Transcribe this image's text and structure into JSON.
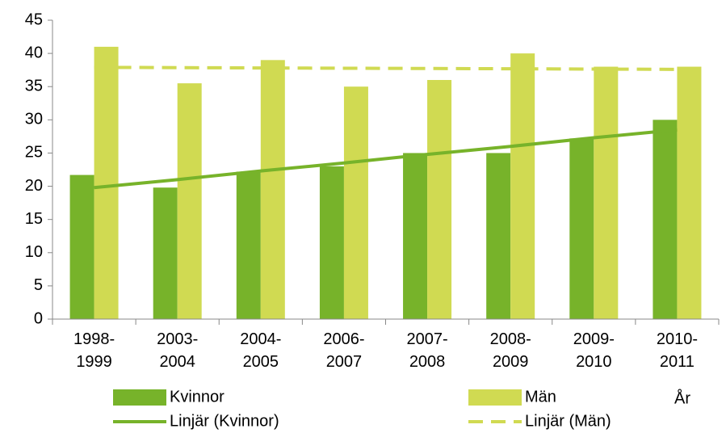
{
  "chart_data": {
    "type": "bar",
    "x_label": "År",
    "categories": [
      "1998-1999",
      "2003-2004",
      "2004-2005",
      "2006-2007",
      "2007-2008",
      "2008-2009",
      "2009-2010",
      "2010-2011"
    ],
    "series": [
      {
        "name": "Kvinnor",
        "color": "#77b32a",
        "kind": "bar",
        "values": [
          21.7,
          19.8,
          22.2,
          23,
          25,
          25,
          27.2,
          30
        ]
      },
      {
        "name": "Män",
        "color": "#d0da52",
        "kind": "bar",
        "values": [
          41,
          35.5,
          39,
          35,
          36,
          40,
          38,
          38
        ]
      },
      {
        "name": "Linjär (Kvinnor)",
        "color": "#77b32a",
        "kind": "line",
        "dashed": false,
        "values": [
          19.8,
          21.0,
          22.3,
          23.5,
          24.8,
          26.0,
          27.3,
          28.5
        ]
      },
      {
        "name": "Linjär (Män)",
        "color": "#d0da52",
        "kind": "line",
        "dashed": true,
        "values": [
          37.9,
          37.86,
          37.81,
          37.77,
          37.73,
          37.69,
          37.64,
          37.6
        ]
      }
    ],
    "ylim": [
      0,
      45
    ],
    "yticks": [
      0,
      5,
      10,
      15,
      20,
      25,
      30,
      35,
      40,
      45
    ],
    "grid": false
  }
}
